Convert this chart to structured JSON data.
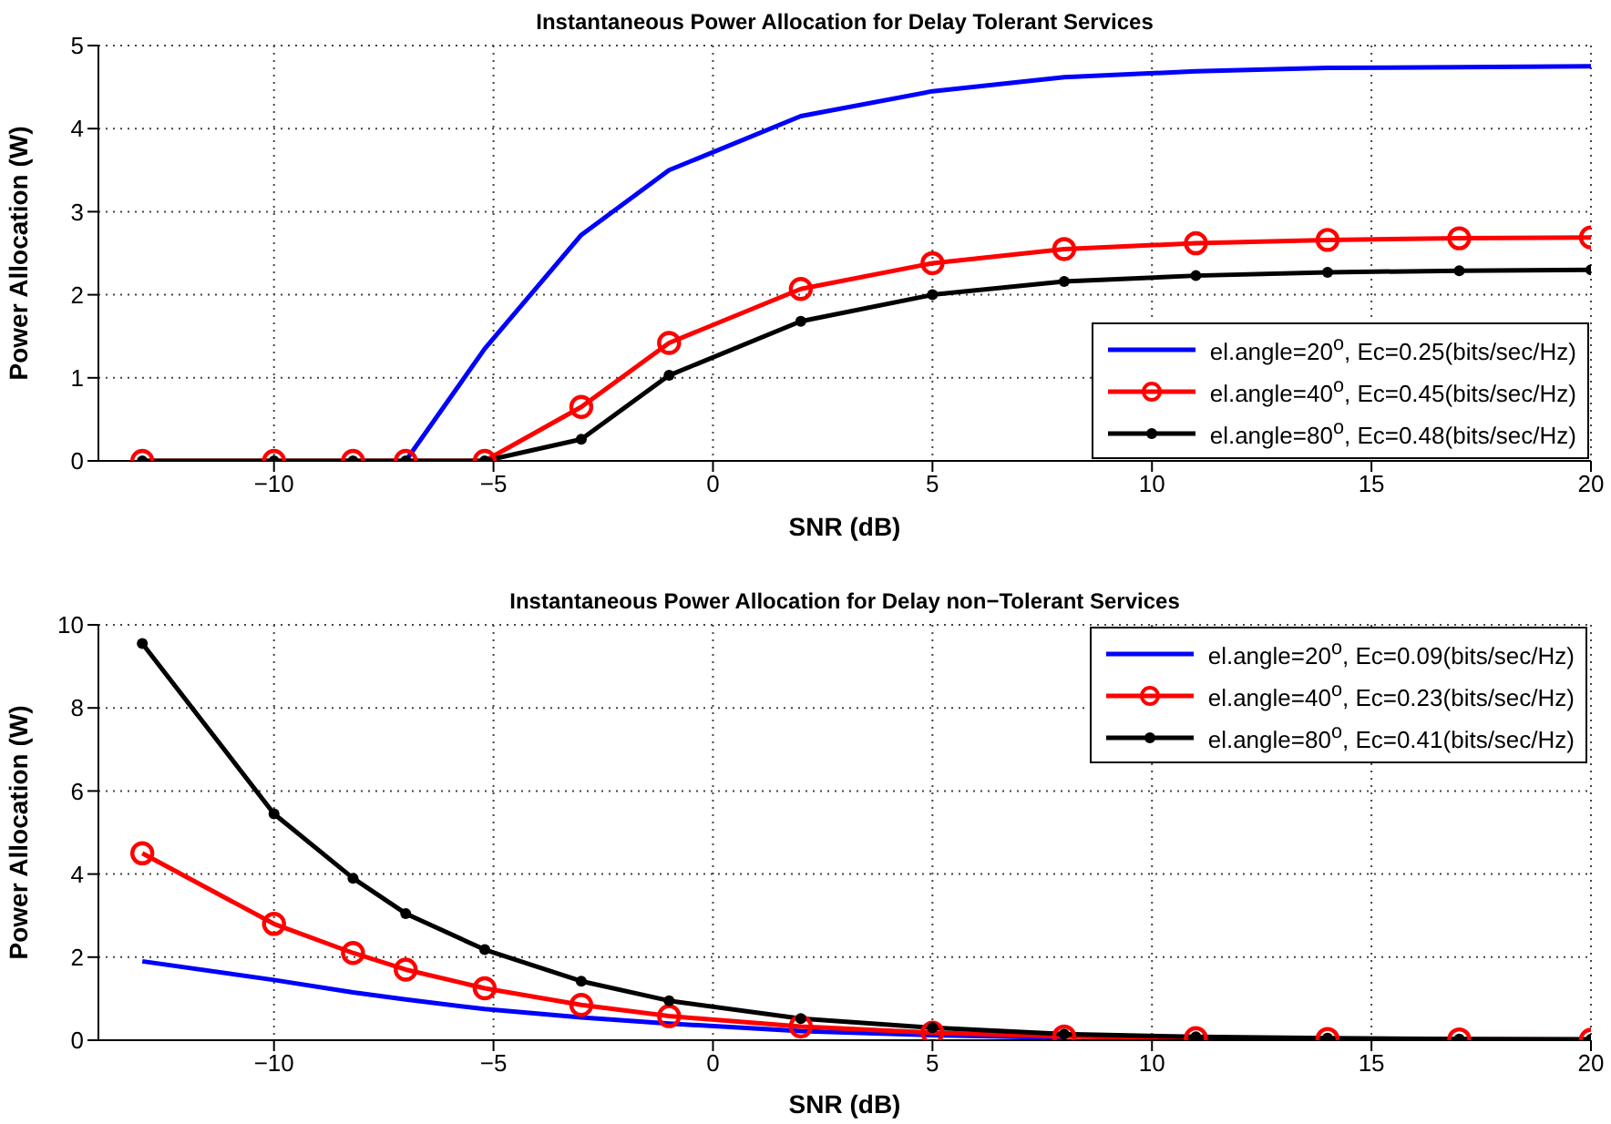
{
  "chart_data": [
    {
      "type": "line",
      "title": "Instantaneous Power Allocation for Delay Tolerant Services",
      "xlabel": "SNR (dB)",
      "ylabel": "Power Allocation (W)",
      "x": [
        -13,
        -10,
        -8.2,
        -7,
        -5.2,
        -3,
        -1,
        2,
        5,
        8,
        11,
        14,
        17,
        20
      ],
      "xlim": [
        -14,
        20
      ],
      "xticks": [
        -10,
        -5,
        0,
        5,
        10,
        15,
        20
      ],
      "ylim": [
        0,
        5
      ],
      "yticks": [
        0,
        1,
        2,
        3,
        4,
        5
      ],
      "grid": true,
      "legend": "bottom right",
      "series": [
        {
          "name": "el.angle=20$^{o}$, Ec=0.25(bits/sec/Hz)",
          "color": "#0000ff",
          "marker": "none",
          "values": [
            null,
            null,
            null,
            0,
            1.35,
            2.72,
            3.5,
            4.15,
            4.45,
            4.62,
            4.69,
            4.73,
            4.74,
            4.75
          ]
        },
        {
          "name": "el.angle=40$^{o}$, Ec=0.45(bits/sec/Hz)",
          "color": "#ff0000",
          "marker": "circle",
          "values": [
            0,
            0,
            0,
            0,
            0,
            0.65,
            1.42,
            2.07,
            2.38,
            2.55,
            2.62,
            2.66,
            2.68,
            2.69
          ]
        },
        {
          "name": "el.angle=80$^{o}$, Ec=0.48(bits/sec/Hz)",
          "color": "#000000",
          "marker": "circle",
          "values": [
            0,
            0,
            0,
            0,
            0,
            0.26,
            1.03,
            1.68,
            2.0,
            2.16,
            2.23,
            2.27,
            2.29,
            2.3
          ]
        }
      ]
    },
    {
      "type": "line",
      "title": "Instantaneous Power Allocation for Delay non−Tolerant Services",
      "xlabel": "SNR (dB)",
      "ylabel": "Power Allocation (W)",
      "x": [
        -13,
        -10,
        -8.2,
        -7,
        -5.2,
        -3,
        -1,
        2,
        5,
        8,
        11,
        14,
        17,
        20
      ],
      "xlim": [
        -14,
        20
      ],
      "xticks": [
        -10,
        -5,
        0,
        5,
        10,
        15,
        20
      ],
      "ylim": [
        0,
        10
      ],
      "yticks": [
        0,
        2,
        4,
        6,
        8,
        10
      ],
      "grid": true,
      "legend": "top right",
      "series": [
        {
          "name": "el.angle=20$^{o}$, Ec=0.09(bits/sec/Hz)",
          "color": "#0000ff",
          "marker": "none",
          "values": [
            1.9,
            1.45,
            1.15,
            0.98,
            0.75,
            0.55,
            0.4,
            0.22,
            0.12,
            0.06,
            null,
            null,
            null,
            null
          ]
        },
        {
          "name": "el.angle=40$^{o}$, Ec=0.23(bits/sec/Hz)",
          "color": "#ff0000",
          "marker": "circle",
          "values": [
            4.5,
            2.8,
            2.1,
            1.7,
            1.25,
            0.85,
            0.58,
            0.33,
            0.18,
            0.09,
            0.05,
            0.03,
            0.02,
            0.01
          ]
        },
        {
          "name": "el.angle=80$^{o}$, Ec=0.41(bits/sec/Hz)",
          "color": "#000000",
          "marker": "circle",
          "values": [
            9.55,
            5.45,
            3.9,
            3.05,
            2.18,
            1.42,
            0.95,
            0.52,
            0.3,
            0.15,
            0.08,
            0.05,
            0.03,
            0.02
          ]
        }
      ]
    }
  ]
}
